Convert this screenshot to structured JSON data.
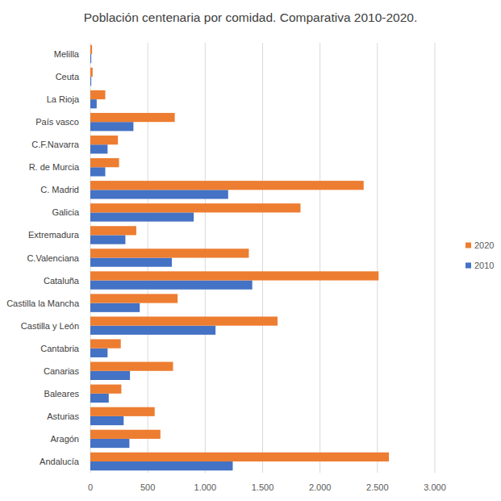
{
  "chart_data": {
    "type": "bar",
    "orientation": "horizontal",
    "title": "Población centenaria por comidad. Comparativa 2010-2020.",
    "categories": [
      "Andalucía",
      "Aragón",
      "Asturias",
      "Baleares",
      "Canarias",
      "Cantabria",
      "Castilla y León",
      "Castilla la Mancha",
      "Cataluña",
      "C.Valenciana",
      "Extremadura",
      "Galicia",
      "C. Madrid",
      "R. de Murcia",
      "C.F.Navarra",
      "País vasco",
      "La Rioja",
      "Ceuta",
      "Melilla"
    ],
    "series": [
      {
        "name": "2010",
        "color": "#4472c4",
        "values": [
          1240,
          340,
          290,
          160,
          345,
          150,
          1090,
          430,
          1410,
          710,
          305,
          900,
          1200,
          130,
          150,
          375,
          55,
          8,
          8
        ]
      },
      {
        "name": "2020",
        "color": "#ed7d31",
        "values": [
          2600,
          610,
          560,
          270,
          720,
          265,
          1630,
          760,
          2510,
          1380,
          400,
          1830,
          2380,
          250,
          240,
          735,
          130,
          20,
          15
        ]
      }
    ],
    "xlim": [
      0,
      3000
    ],
    "xticks": [
      0,
      500,
      {
        "value": 1000,
        "label": "1.000"
      },
      {
        "value": 1500,
        "label": "1.500"
      },
      {
        "value": 2000,
        "label": "2.000"
      },
      {
        "value": 2500,
        "label": "2.500"
      },
      {
        "value": 3000,
        "label": "3.000"
      }
    ],
    "grid": true,
    "legend": "right"
  }
}
